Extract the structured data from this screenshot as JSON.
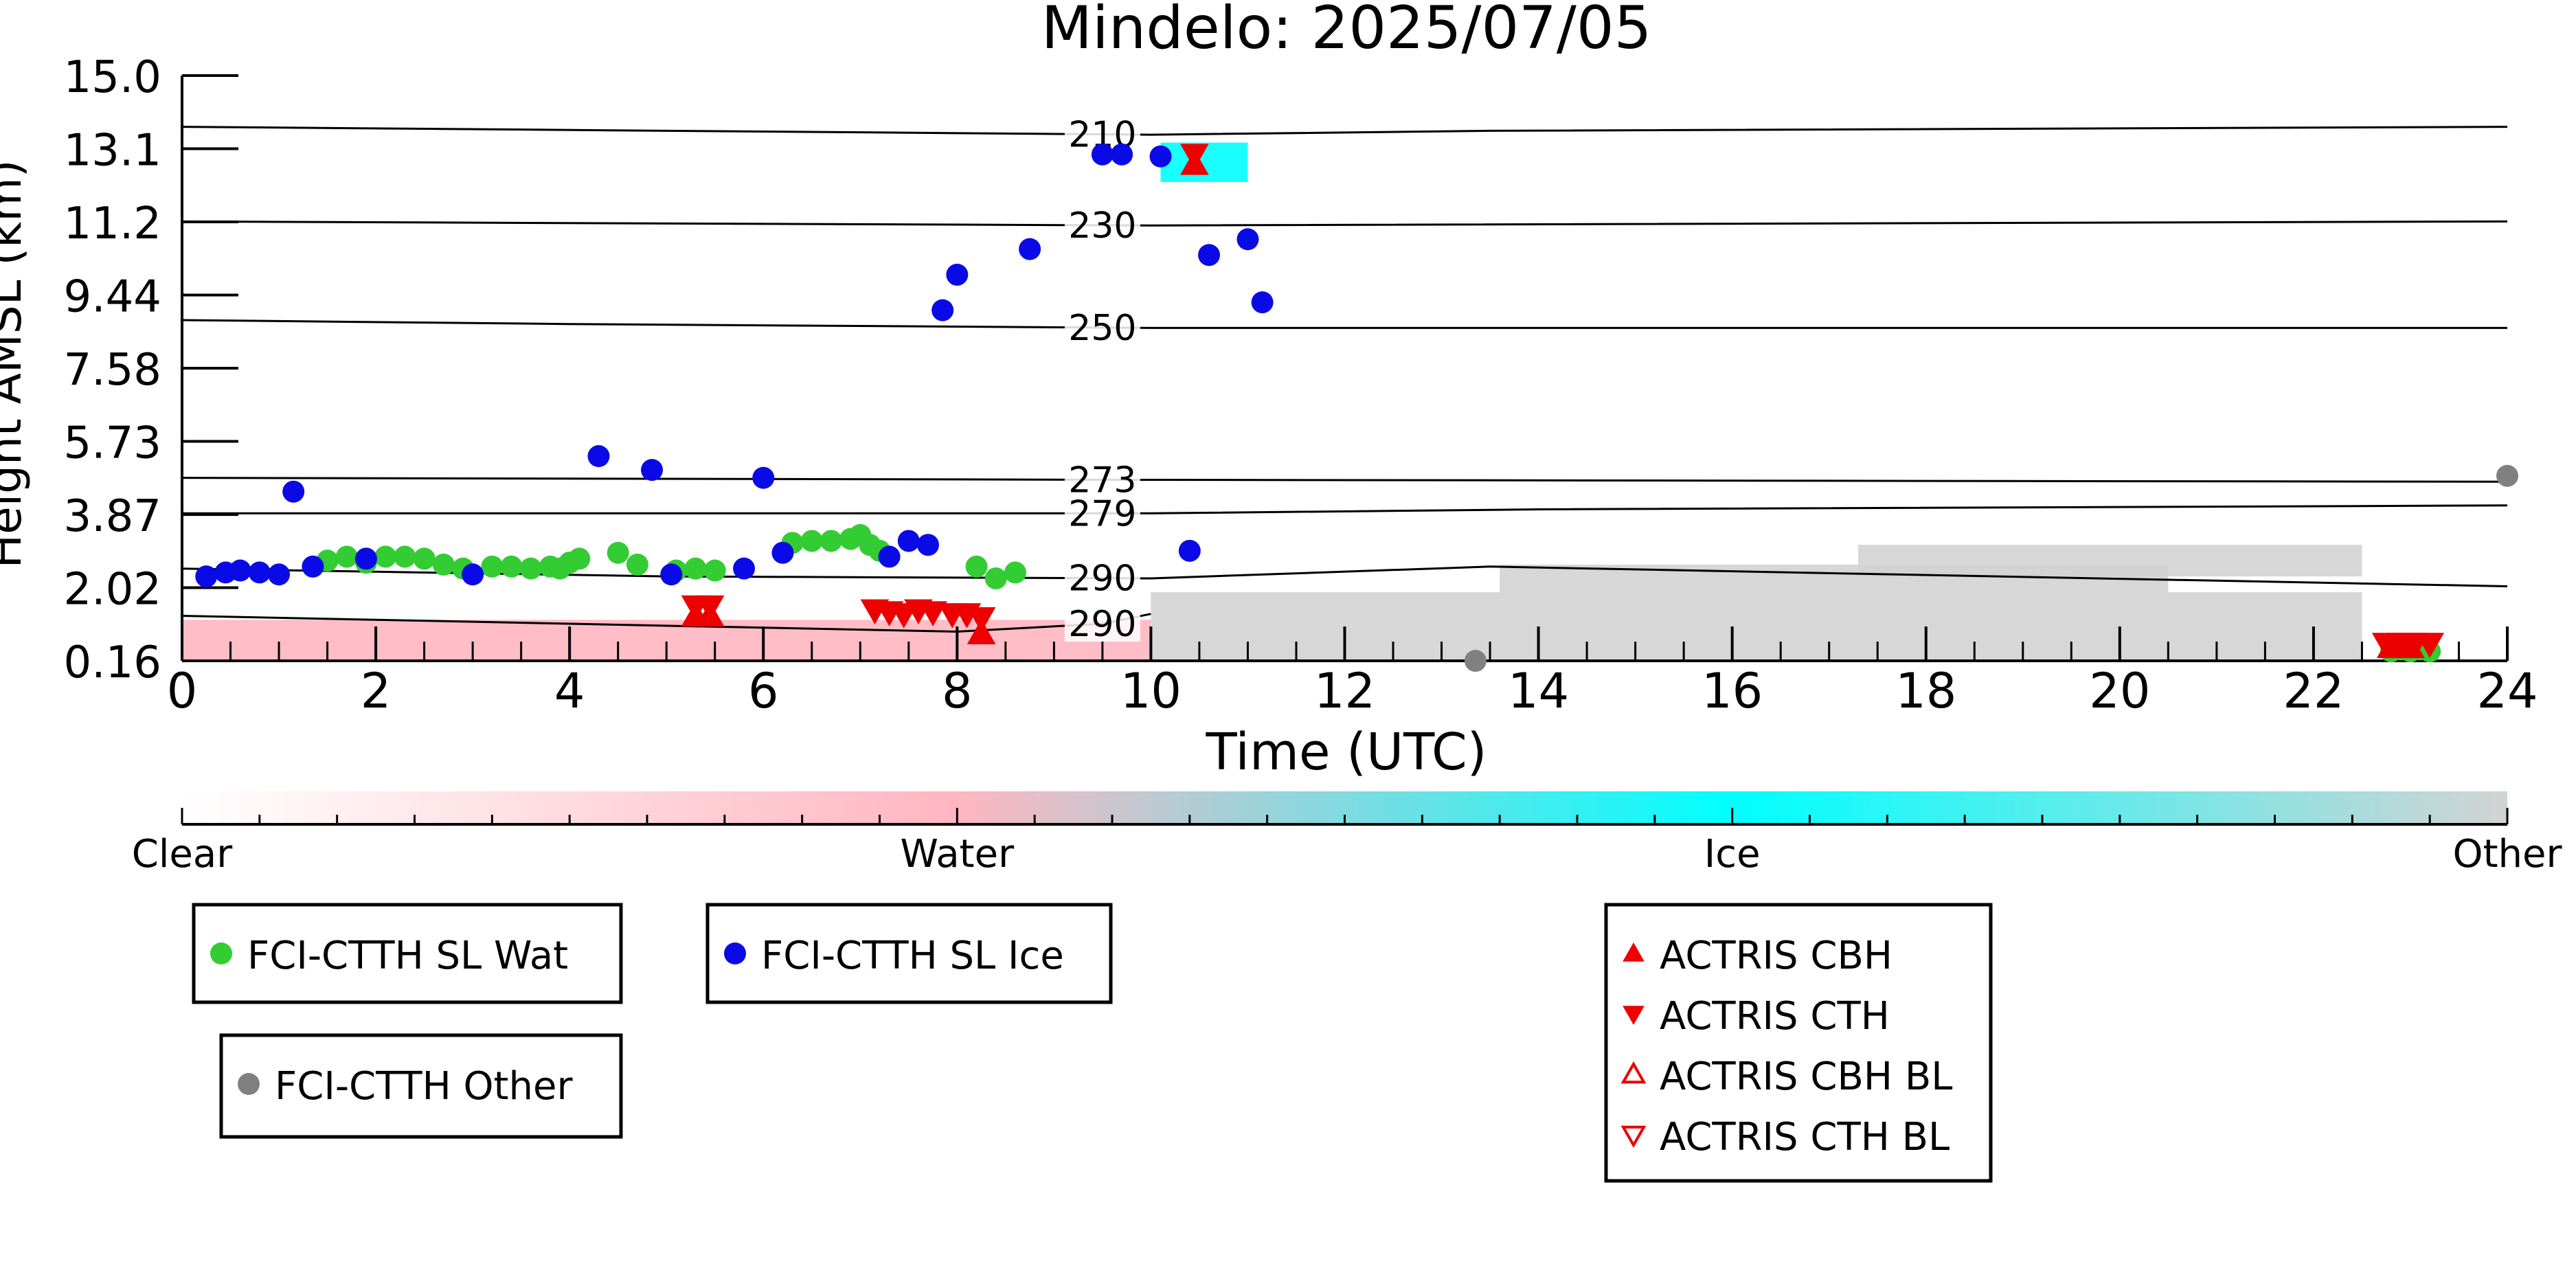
{
  "chart_data": {
    "type": "scatter",
    "title": "Mindelo: 2025/07/05",
    "xlabel": "Time (UTC)",
    "ylabel": "Height AMSL (km)",
    "xlim": [
      0,
      24
    ],
    "ylim": [
      0.16,
      15.0
    ],
    "x_ticks": [
      "0",
      "2",
      "4",
      "6",
      "8",
      "10",
      "12",
      "14",
      "16",
      "18",
      "20",
      "22",
      "24"
    ],
    "y_ticks": [
      "0.16",
      "2.02",
      "3.87",
      "5.73",
      "7.58",
      "9.44",
      "11.2",
      "13.1",
      "15.0"
    ],
    "grid": false,
    "temperature_contours": [
      {
        "label": "210",
        "points": [
          [
            0,
            13.7
          ],
          [
            10,
            13.5
          ],
          [
            13.5,
            13.6
          ],
          [
            24,
            13.7
          ]
        ]
      },
      {
        "label": "230",
        "points": [
          [
            0,
            11.3
          ],
          [
            10,
            11.2
          ],
          [
            24,
            11.3
          ]
        ]
      },
      {
        "label": "250",
        "points": [
          [
            0,
            8.8
          ],
          [
            4,
            8.7
          ],
          [
            10,
            8.6
          ],
          [
            24,
            8.6
          ]
        ]
      },
      {
        "label": "273",
        "points": [
          [
            0,
            4.8
          ],
          [
            10,
            4.75
          ],
          [
            24,
            4.7
          ]
        ]
      },
      {
        "label": "279",
        "points": [
          [
            0,
            3.9
          ],
          [
            10,
            3.9
          ],
          [
            14,
            4.0
          ],
          [
            24,
            4.1
          ]
        ]
      },
      {
        "label": "290",
        "points": [
          [
            0,
            2.5
          ],
          [
            5,
            2.3
          ],
          [
            10,
            2.25
          ],
          [
            13.5,
            2.55
          ],
          [
            24,
            2.05
          ]
        ]
      },
      {
        "label": "290",
        "points": [
          [
            0,
            1.3
          ],
          [
            4,
            1.1
          ],
          [
            8,
            0.9
          ],
          [
            9.5,
            1.1
          ],
          [
            10,
            1.35
          ]
        ]
      }
    ],
    "series": [
      {
        "name": "FCI-CTTH SL Wat",
        "marker": "circle",
        "color": "#33cc33",
        "x": [
          1.5,
          1.7,
          1.9,
          2.1,
          2.3,
          2.5,
          2.7,
          2.9,
          3.2,
          3.4,
          3.6,
          3.8,
          3.9,
          4.0,
          4.1,
          4.5,
          4.7,
          5.1,
          5.3,
          5.5,
          6.3,
          6.5,
          6.7,
          6.9,
          7.0,
          7.1,
          7.2,
          8.2,
          8.4,
          8.6,
          22.8,
          22.9,
          23.0,
          23.1,
          23.2
        ],
        "y": [
          2.7,
          2.8,
          2.65,
          2.8,
          2.8,
          2.75,
          2.6,
          2.5,
          2.55,
          2.55,
          2.5,
          2.55,
          2.5,
          2.65,
          2.75,
          2.9,
          2.6,
          2.45,
          2.5,
          2.45,
          3.15,
          3.2,
          3.2,
          3.25,
          3.35,
          3.1,
          2.95,
          2.55,
          2.25,
          2.4,
          0.4,
          0.45,
          0.4,
          0.45,
          0.4
        ]
      },
      {
        "name": "FCI-CTTH SL Ice",
        "marker": "circle",
        "color": "#0a0ae6",
        "x": [
          0.25,
          0.45,
          0.6,
          0.8,
          1.0,
          1.15,
          1.35,
          1.9,
          3.0,
          4.3,
          4.85,
          5.05,
          5.8,
          6.0,
          6.2,
          7.3,
          7.5,
          7.7,
          7.85,
          8.0,
          8.75,
          9.5,
          9.7,
          10.1,
          10.4,
          10.6,
          11.0,
          11.15
        ],
        "y": [
          2.3,
          2.4,
          2.45,
          2.4,
          2.35,
          4.45,
          2.55,
          2.75,
          2.35,
          5.35,
          5.0,
          2.35,
          2.5,
          4.8,
          2.9,
          2.8,
          3.2,
          3.1,
          9.05,
          9.95,
          10.6,
          13.0,
          13.0,
          12.95,
          2.95,
          10.45,
          10.85,
          9.25
        ]
      },
      {
        "name": "FCI-CTTH Other",
        "marker": "circle",
        "color": "#808080",
        "x": [
          13.35,
          24.0
        ],
        "y": [
          0.16,
          4.85
        ]
      },
      {
        "name": "ACTRIS CBH",
        "marker": "triangle-up",
        "color": "#ee0000",
        "x": [
          5.3,
          5.45,
          10.45,
          8.25,
          22.8,
          23.0
        ],
        "y": [
          1.3,
          1.3,
          12.75,
          0.85,
          0.5,
          0.5
        ]
      },
      {
        "name": "ACTRIS CTH",
        "marker": "triangle-down",
        "color": "#ee0000",
        "x": [
          5.3,
          5.45,
          7.15,
          7.3,
          7.45,
          7.6,
          7.75,
          7.95,
          8.1,
          8.25,
          10.45,
          22.75,
          22.9,
          23.05,
          23.2
        ],
        "y": [
          1.55,
          1.55,
          1.45,
          1.4,
          1.35,
          1.45,
          1.4,
          1.35,
          1.35,
          1.25,
          13.0,
          0.6,
          0.6,
          0.6,
          0.6
        ]
      },
      {
        "name": "ACTRIS CBH BL",
        "marker": "triangle-up-open",
        "color": "#ee0000",
        "x": [],
        "y": []
      },
      {
        "name": "ACTRIS CTH BL",
        "marker": "triangle-down-open",
        "color": "#ee0000",
        "x": [],
        "y": []
      }
    ],
    "classification_colorbar": {
      "labels": [
        "Clear",
        "Water",
        "Ice",
        "Other"
      ],
      "colors": [
        "#ffffff",
        "#ffb6c1",
        "#00ffff",
        "#d3d3d3"
      ]
    },
    "background_classes": [
      {
        "class": "Water",
        "color": "#ffb6c1",
        "x": [
          0,
          10
        ],
        "y": [
          0.16,
          1.2
        ]
      },
      {
        "class": "Other",
        "color": "#d3d3d3",
        "x": [
          10,
          22.5
        ],
        "y": [
          0.16,
          1.9
        ]
      },
      {
        "class": "Other",
        "color": "#d3d3d3",
        "x": [
          13.6,
          20.5
        ],
        "y": [
          1.9,
          2.6
        ]
      },
      {
        "class": "Other",
        "color": "#d3d3d3",
        "x": [
          17.3,
          22.5
        ],
        "y": [
          2.3,
          3.1
        ]
      },
      {
        "class": "Ice",
        "color": "#00ffff",
        "x": [
          10.1,
          11
        ],
        "y": [
          12.3,
          13.3
        ]
      }
    ],
    "legend_boxes": [
      [
        "FCI-CTTH SL Wat"
      ],
      [
        "FCI-CTTH SL Ice"
      ],
      [
        "FCI-CTTH Other"
      ],
      [
        "ACTRIS CBH",
        "ACTRIS CTH",
        "ACTRIS CBH BL",
        "ACTRIS CTH BL"
      ]
    ]
  }
}
